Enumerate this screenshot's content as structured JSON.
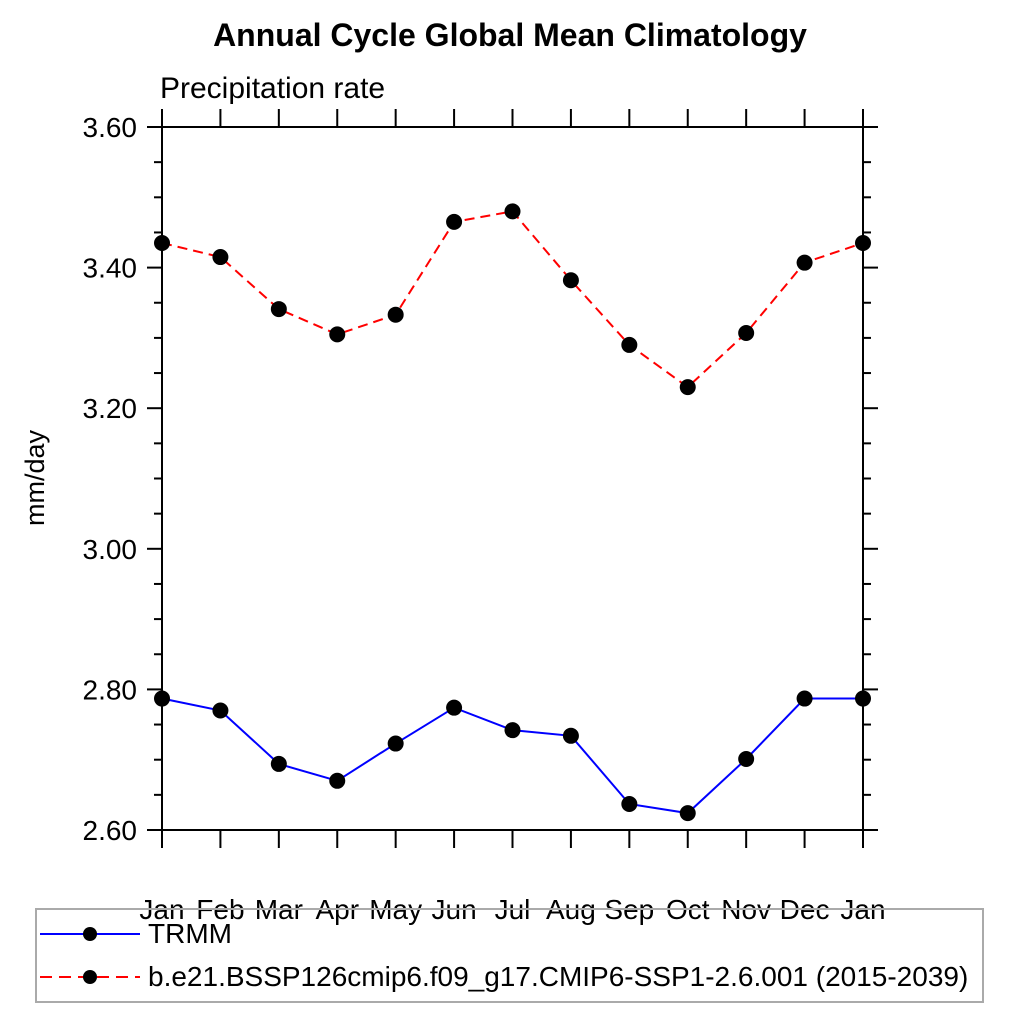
{
  "header": {
    "title": "Annual Cycle Global Mean Climatology",
    "left_subtitle": "Precipitation rate"
  },
  "chart_data": {
    "type": "line",
    "title": "Annual Cycle Global Mean Climatology",
    "subtitle": "Precipitation rate",
    "xlabel": "",
    "ylabel": "mm/day",
    "categories": [
      "Jan",
      "Feb",
      "Mar",
      "Apr",
      "May",
      "Jun",
      "Jul",
      "Aug",
      "Sep",
      "Oct",
      "Nov",
      "Dec",
      "Jan"
    ],
    "ylim": [
      2.6,
      3.6
    ],
    "ytick_major_step": 0.2,
    "ytick_minor_step": 0.05,
    "ytick_major_labels": [
      "2.60",
      "2.80",
      "3.00",
      "3.20",
      "3.40",
      "3.60"
    ],
    "grid": false,
    "legend_position": "bottom",
    "axis_color": "#000000",
    "marker_color": "#000000",
    "legend_border_color": "#aaaaaa",
    "series": [
      {
        "name": "TRMM",
        "color": "#0000ff",
        "style": "solid",
        "marker": "circle",
        "values": [
          2.787,
          2.77,
          2.694,
          2.67,
          2.723,
          2.774,
          2.742,
          2.734,
          2.637,
          2.624,
          2.701,
          2.787,
          2.787
        ]
      },
      {
        "name": "b.e21.BSSP126cmip6.f09_g17.CMIP6-SSP1-2.6.001 (2015-2039)",
        "color": "#ff0000",
        "style": "dashed",
        "marker": "circle",
        "values": [
          3.435,
          3.415,
          3.341,
          3.305,
          3.333,
          3.465,
          3.48,
          3.382,
          3.29,
          3.23,
          3.307,
          3.407,
          3.435
        ]
      }
    ]
  }
}
